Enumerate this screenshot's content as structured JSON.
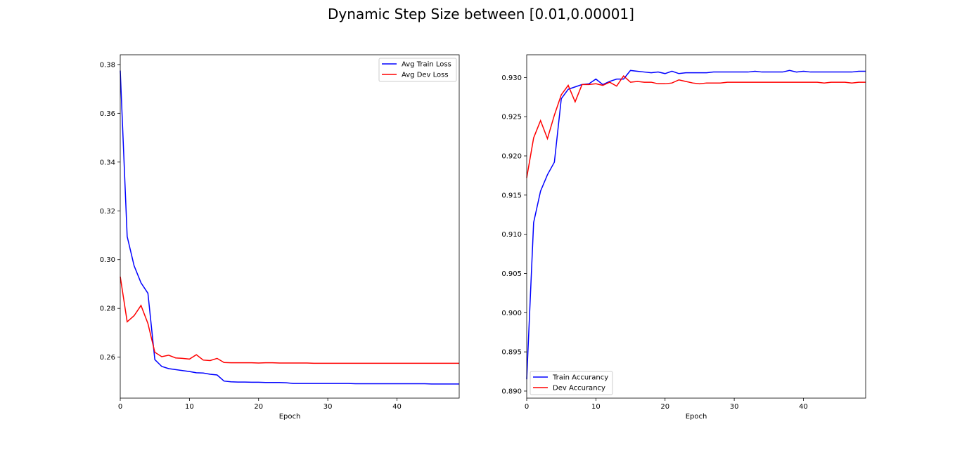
{
  "figure": {
    "title": "Dynamic Step Size between [0.01,0.00001]"
  },
  "chart_data": [
    {
      "type": "line",
      "title": "",
      "xlabel": "Epoch",
      "ylabel": "",
      "xlim": [
        0,
        49
      ],
      "ylim": [
        0.2432,
        0.384
      ],
      "xticks": [
        0,
        10,
        20,
        30,
        40
      ],
      "yticks": [
        0.26,
        0.28,
        0.3,
        0.32,
        0.34,
        0.36,
        0.38
      ],
      "ytick_labels": [
        "0.26",
        "0.28",
        "0.30",
        "0.32",
        "0.34",
        "0.36",
        "0.38"
      ],
      "legend_position": "upper-right",
      "grid": false,
      "x": [
        0,
        1,
        2,
        3,
        4,
        5,
        6,
        7,
        8,
        9,
        10,
        11,
        12,
        13,
        14,
        15,
        16,
        17,
        18,
        19,
        20,
        21,
        22,
        23,
        24,
        25,
        26,
        27,
        28,
        29,
        30,
        31,
        32,
        33,
        34,
        35,
        36,
        37,
        38,
        39,
        40,
        41,
        42,
        43,
        44,
        45,
        46,
        47,
        48,
        49
      ],
      "series": [
        {
          "name": "Avg Train Loss",
          "color": "#0000ff",
          "values": [
            0.3775,
            0.3095,
            0.2975,
            0.2905,
            0.2862,
            0.259,
            0.2562,
            0.2553,
            0.2549,
            0.2545,
            0.2541,
            0.2536,
            0.2535,
            0.253,
            0.2527,
            0.2502,
            0.2499,
            0.2498,
            0.2498,
            0.2497,
            0.2497,
            0.2496,
            0.2496,
            0.2496,
            0.2495,
            0.2492,
            0.2492,
            0.2492,
            0.2492,
            0.2492,
            0.2492,
            0.2492,
            0.2492,
            0.2492,
            0.2491,
            0.2491,
            0.2491,
            0.2491,
            0.2491,
            0.2491,
            0.2491,
            0.2491,
            0.2491,
            0.2491,
            0.2491,
            0.249,
            0.249,
            0.249,
            0.249,
            0.249
          ]
        },
        {
          "name": "Avg Dev Loss",
          "color": "#ff0000",
          "values": [
            0.293,
            0.2745,
            0.277,
            0.2812,
            0.2738,
            0.262,
            0.2602,
            0.2608,
            0.2597,
            0.2595,
            0.2592,
            0.261,
            0.2588,
            0.2586,
            0.2595,
            0.2578,
            0.2577,
            0.2577,
            0.2577,
            0.2577,
            0.2576,
            0.2577,
            0.2577,
            0.2576,
            0.2576,
            0.2576,
            0.2576,
            0.2576,
            0.2575,
            0.2575,
            0.2575,
            0.2575,
            0.2575,
            0.2575,
            0.2575,
            0.2575,
            0.2575,
            0.2575,
            0.2575,
            0.2575,
            0.2575,
            0.2575,
            0.2575,
            0.2575,
            0.2575,
            0.2575,
            0.2575,
            0.2575,
            0.2575,
            0.2575
          ]
        }
      ]
    },
    {
      "type": "line",
      "title": "",
      "xlabel": "Epoch",
      "ylabel": "",
      "xlim": [
        0,
        49
      ],
      "ylim": [
        0.8891,
        0.9329
      ],
      "xticks": [
        0,
        10,
        20,
        30,
        40
      ],
      "yticks": [
        0.89,
        0.895,
        0.9,
        0.905,
        0.91,
        0.915,
        0.92,
        0.925,
        0.93
      ],
      "ytick_labels": [
        "0.890",
        "0.895",
        "0.900",
        "0.905",
        "0.910",
        "0.915",
        "0.920",
        "0.925",
        "0.930"
      ],
      "legend_position": "lower-left",
      "grid": false,
      "x": [
        0,
        1,
        2,
        3,
        4,
        5,
        6,
        7,
        8,
        9,
        10,
        11,
        12,
        13,
        14,
        15,
        16,
        17,
        18,
        19,
        20,
        21,
        22,
        23,
        24,
        25,
        26,
        27,
        28,
        29,
        30,
        31,
        32,
        33,
        34,
        35,
        36,
        37,
        38,
        39,
        40,
        41,
        42,
        43,
        44,
        45,
        46,
        47,
        48,
        49
      ],
      "series": [
        {
          "name": "Train Accurancy",
          "color": "#0000ff",
          "values": [
            0.8915,
            0.9115,
            0.9155,
            0.9176,
            0.9192,
            0.9273,
            0.9285,
            0.9288,
            0.9291,
            0.9292,
            0.9298,
            0.9291,
            0.9295,
            0.9298,
            0.9298,
            0.9309,
            0.9308,
            0.9307,
            0.9306,
            0.9307,
            0.9305,
            0.9308,
            0.9305,
            0.9306,
            0.9306,
            0.9306,
            0.9306,
            0.9307,
            0.9307,
            0.9307,
            0.9307,
            0.9307,
            0.9307,
            0.9308,
            0.9307,
            0.9307,
            0.9307,
            0.9307,
            0.9309,
            0.9307,
            0.9308,
            0.9307,
            0.9307,
            0.9307,
            0.9307,
            0.9307,
            0.9307,
            0.9307,
            0.9308,
            0.9308
          ]
        },
        {
          "name": "Dev Accurancy",
          "color": "#ff0000",
          "values": [
            0.9172,
            0.9223,
            0.9245,
            0.9222,
            0.9252,
            0.9278,
            0.929,
            0.9269,
            0.9291,
            0.9291,
            0.9292,
            0.929,
            0.9294,
            0.9289,
            0.9302,
            0.9294,
            0.9295,
            0.9294,
            0.9294,
            0.9292,
            0.9292,
            0.9293,
            0.9297,
            0.9295,
            0.9293,
            0.9292,
            0.9293,
            0.9293,
            0.9293,
            0.9294,
            0.9294,
            0.9294,
            0.9294,
            0.9294,
            0.9294,
            0.9294,
            0.9294,
            0.9294,
            0.9294,
            0.9294,
            0.9294,
            0.9294,
            0.9294,
            0.9293,
            0.9294,
            0.9294,
            0.9294,
            0.9293,
            0.9294,
            0.9294
          ]
        }
      ]
    }
  ]
}
